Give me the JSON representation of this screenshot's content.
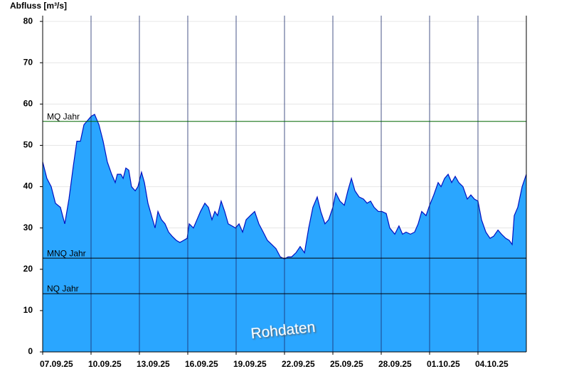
{
  "chart_data": {
    "type": "area",
    "y_label": "Abfluss [m³/s]",
    "watermark": "Rohdaten",
    "color": "#2aa6ff",
    "line_color": "#0010c0",
    "grid": true,
    "xlim": [
      0,
      30
    ],
    "xticks": [
      {
        "value": 0,
        "label": "07.09.25"
      },
      {
        "value": 3,
        "label": "10.09.25"
      },
      {
        "value": 6,
        "label": "13.09.25"
      },
      {
        "value": 9,
        "label": "16.09.25"
      },
      {
        "value": 12,
        "label": "19.09.25"
      },
      {
        "value": 15,
        "label": "22.09.25"
      },
      {
        "value": 18,
        "label": "25.09.25"
      },
      {
        "value": 21,
        "label": "28.09.25"
      },
      {
        "value": 24,
        "label": "01.10.25"
      },
      {
        "value": 27,
        "label": "04.10.25"
      }
    ],
    "ylim": [
      0,
      81.4
    ],
    "yticks": [
      0,
      10,
      20,
      30,
      40,
      50,
      60,
      70,
      80
    ],
    "reference_lines": [
      {
        "label": "MQ Jahr",
        "value": 55.8,
        "color": "#006600"
      },
      {
        "label": "MNQ Jahr",
        "value": 22.7,
        "color": "#000000"
      },
      {
        "label": "NQ Jahr",
        "value": 14.1,
        "color": "#000000"
      }
    ],
    "x": [
      0,
      0.26,
      0.53,
      0.79,
      1.1,
      1.37,
      1.63,
      1.9,
      2.12,
      2.34,
      2.56,
      2.78,
      3.0,
      3.22,
      3.49,
      3.75,
      4.01,
      4.28,
      4.5,
      4.63,
      4.85,
      4.99,
      5.16,
      5.34,
      5.51,
      5.74,
      5.91,
      6.13,
      6.31,
      6.53,
      6.75,
      6.97,
      7.15,
      7.37,
      7.59,
      7.81,
      8.03,
      8.29,
      8.51,
      8.74,
      8.96,
      9.09,
      9.35,
      9.57,
      9.79,
      10.06,
      10.28,
      10.5,
      10.68,
      10.85,
      11.07,
      11.29,
      11.51,
      11.74,
      11.96,
      12.18,
      12.4,
      12.62,
      12.88,
      13.15,
      13.41,
      13.68,
      13.94,
      14.21,
      14.47,
      14.74,
      15.0,
      15.22,
      15.44,
      15.71,
      15.97,
      16.24,
      16.5,
      16.76,
      17.03,
      17.25,
      17.51,
      17.74,
      18.0,
      18.18,
      18.44,
      18.71,
      18.93,
      19.15,
      19.37,
      19.63,
      19.9,
      20.12,
      20.34,
      20.56,
      20.82,
      21.04,
      21.31,
      21.53,
      21.84,
      22.1,
      22.32,
      22.54,
      22.81,
      23.07,
      23.29,
      23.51,
      23.78,
      24.0,
      24.26,
      24.53,
      24.71,
      24.93,
      25.15,
      25.37,
      25.59,
      25.81,
      26.07,
      26.34,
      26.56,
      26.78,
      27.0,
      27.22,
      27.49,
      27.75,
      27.97,
      28.24,
      28.46,
      28.72,
      28.94,
      29.12,
      29.25,
      29.47,
      29.74,
      30.0
    ],
    "values": [
      46,
      42,
      40,
      36,
      35,
      31,
      37,
      45,
      51,
      51,
      55,
      56,
      57,
      57.5,
      55,
      51,
      46,
      43,
      41,
      43,
      43,
      42,
      44.5,
      44,
      40,
      39,
      40,
      43.5,
      41,
      36,
      33,
      30,
      34,
      32,
      31,
      29,
      28,
      27,
      26.5,
      27,
      27.5,
      31,
      30,
      32,
      34,
      36,
      35,
      32,
      34,
      33,
      36.5,
      34,
      31,
      30.5,
      30,
      31,
      29,
      32,
      33,
      34,
      31,
      29,
      27,
      26,
      25,
      23,
      22.5,
      23,
      23,
      24,
      25.5,
      24,
      30,
      35,
      37.5,
      34,
      31,
      32,
      35,
      38.5,
      36.5,
      35.5,
      39,
      42,
      39,
      37.5,
      37,
      36,
      36.5,
      35,
      34,
      34,
      33.5,
      30,
      28.5,
      30.5,
      28.5,
      29,
      28.5,
      29,
      31,
      34,
      33,
      35.5,
      38,
      41,
      40,
      42,
      43,
      41,
      42.5,
      41,
      40,
      37,
      38,
      37,
      36.5,
      32,
      29,
      27.5,
      28,
      29.5,
      28.5,
      27.5,
      27,
      26,
      33,
      35,
      40,
      43
    ]
  }
}
